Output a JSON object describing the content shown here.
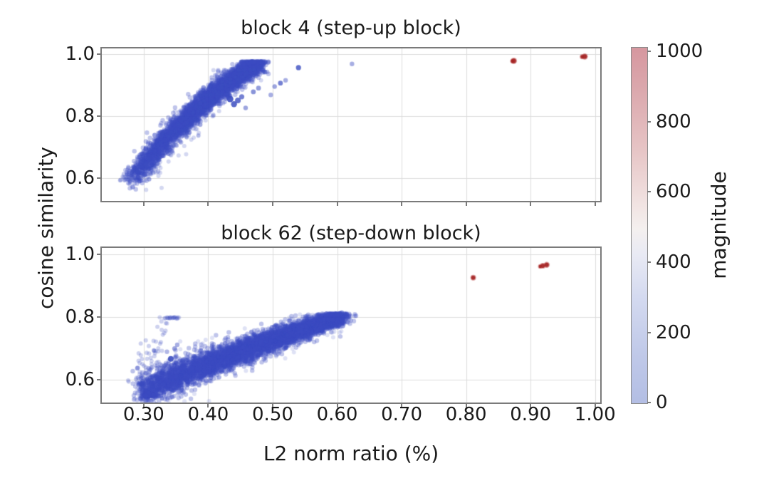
{
  "figure": {
    "xlabel": "L2 norm ratio (%)",
    "ylabel": "cosine similarity",
    "background": "#ffffff",
    "grid_color": "#dcdcdc",
    "frame_color": "#7a7a7a",
    "colorbar": {
      "label": "magnitude",
      "tick_labels": [
        "1000",
        "800",
        "600",
        "400",
        "200",
        "0"
      ],
      "tick_values": [
        1000,
        800,
        600,
        400,
        200,
        0
      ],
      "vmin": 0,
      "vmax": 1000,
      "colormap": "coolwarm (muted / translucent)",
      "gradient_stops": [
        [
          0,
          "#d6979f"
        ],
        [
          12,
          "#dba8ad"
        ],
        [
          28,
          "#e6c3c4"
        ],
        [
          44,
          "#f1e3e2"
        ],
        [
          51,
          "#f4f0ef"
        ],
        [
          58,
          "#e9eaf4"
        ],
        [
          70,
          "#d4daf0"
        ],
        [
          85,
          "#c1cae9"
        ],
        [
          100,
          "#b3bee4"
        ]
      ]
    }
  },
  "chart_data": [
    {
      "type": "scatter",
      "title": "block 4 (step-up block)",
      "xlim": [
        0.235,
        1.008
      ],
      "ylim": [
        0.526,
        1.018
      ],
      "x_tick_values": [
        0.3,
        0.4,
        0.5,
        0.6,
        0.7,
        0.8,
        0.9,
        1.0
      ],
      "x_tick_labels": [],
      "y_tick_values": [
        1.0,
        0.8,
        0.6
      ],
      "y_tick_labels": [
        "1.0",
        "0.8",
        "0.6"
      ],
      "grid": true,
      "point_color_low_magnitude": "#3b4cc0",
      "point_color_high_magnitude": "#b40426",
      "seed": 42,
      "clusters": [
        {
          "kind": "band",
          "n": 3600,
          "t_exp": 0.78,
          "x0": 0.283,
          "x_span": 0.197,
          "x_sigma": 0.0065,
          "y_poly": [
            0.598,
            0.525,
            -0.152
          ],
          "y_sigma0": 0.02,
          "y_sigma1": 0.015,
          "y_max": 0.976,
          "r": 3.2,
          "alpha": 0.32
        },
        {
          "kind": "band",
          "n": 260,
          "t_exp": 1.0,
          "x0": 0.3,
          "x_span": 0.17,
          "x_sigma": 0.009,
          "y_poly": [
            0.615,
            0.5,
            -0.13
          ],
          "y_offset": -0.018,
          "y_sigma0": 0.03,
          "y_sigma1": 0.02,
          "y_max": 0.95,
          "r": 3.0,
          "alpha": 0.22
        },
        {
          "kind": "band",
          "n": 70,
          "t_exp": 1.0,
          "x0": 0.263,
          "x_span": 0.05,
          "x_sigma": 0.004,
          "y_poly": [
            0.588,
            0.075,
            0
          ],
          "y_sigma0": 0.013,
          "y_sigma1": 0.013,
          "y_max": 0.99,
          "r": 3.0,
          "alpha": 0.3
        }
      ],
      "outliers_blue": [
        [
          0.623,
          0.968,
          3.2,
          0.45
        ],
        [
          0.54,
          0.956,
          3.6,
          0.8
        ],
        [
          0.512,
          0.906,
          3.4,
          0.7
        ],
        [
          0.52,
          0.915,
          3.2,
          0.45
        ],
        [
          0.503,
          0.895,
          3.2,
          0.5
        ],
        [
          0.497,
          0.868,
          3.2,
          0.45
        ],
        [
          0.434,
          0.855,
          4.6,
          0.9
        ],
        [
          0.44,
          0.838,
          4.2,
          0.85
        ],
        [
          0.446,
          0.85,
          4.0,
          0.8
        ],
        [
          0.452,
          0.862,
          3.6,
          0.7
        ],
        [
          0.47,
          0.878,
          3.4,
          0.6
        ],
        [
          0.458,
          0.826,
          3.2,
          0.5
        ],
        [
          0.478,
          0.89,
          3.4,
          0.55
        ],
        [
          0.488,
          0.942,
          3.4,
          0.6
        ]
      ],
      "points_red": [
        [
          0.874,
          0.978,
          4.4
        ],
        [
          0.872,
          0.977,
          3.4
        ],
        [
          0.984,
          0.992,
          4.4
        ],
        [
          0.98,
          0.991,
          3.4
        ]
      ]
    },
    {
      "type": "scatter",
      "title": "block 62 (step-down block)",
      "xlim": [
        0.235,
        1.008
      ],
      "ylim": [
        0.528,
        1.021
      ],
      "x_tick_values": [
        0.3,
        0.4,
        0.5,
        0.6,
        0.7,
        0.8,
        0.9,
        1.0
      ],
      "x_tick_labels": [
        "0.30",
        "0.40",
        "0.50",
        "0.60",
        "0.70",
        "0.80",
        "0.90",
        "1.00"
      ],
      "y_tick_values": [
        1.0,
        0.8,
        0.6
      ],
      "y_tick_labels": [
        "1.0",
        "0.8",
        "0.6"
      ],
      "grid": true,
      "point_color_low_magnitude": "#3b4cc0",
      "point_color_high_magnitude": "#b40426",
      "seed": 7,
      "clusters": [
        {
          "kind": "band",
          "n": 5200,
          "t_exp": 0.85,
          "x0": 0.298,
          "x_span": 0.31,
          "x_sigma": 0.008,
          "y_poly": [
            0.565,
            0.272,
            -0.036
          ],
          "y_sigma0": 0.027,
          "y_sigma1": 0.012,
          "y_max": 0.812,
          "r": 3.2,
          "alpha": 0.32
        },
        {
          "kind": "band",
          "n": 320,
          "t_exp": 0.9,
          "x0": 0.298,
          "x_span": 0.31,
          "x_sigma": 0.01,
          "y_poly": [
            0.565,
            0.272,
            -0.036
          ],
          "y_sigma0": 0.042,
          "y_sigma1": 0.02,
          "y_max": 0.81,
          "r": 3.0,
          "alpha": 0.16
        },
        {
          "kind": "blob",
          "n": 130,
          "cx": 0.308,
          "cy": 0.553,
          "sx": 0.0045,
          "sy": 0.0045,
          "r": 3.2,
          "alpha": 0.4
        },
        {
          "kind": "band",
          "n": 90,
          "t_exp": 1.0,
          "x0": 0.287,
          "x_span": 0.06,
          "x_sigma": 0.006,
          "y_poly": [
            0.558,
            0.28,
            0
          ],
          "y_sigma0": 0.02,
          "y_sigma1": 0.02,
          "y_max": 0.8,
          "r": 3.0,
          "alpha": 0.25
        }
      ],
      "outliers_blue": [
        [
          0.342,
          0.667,
          4.0,
          0.9
        ],
        [
          0.348,
          0.7,
          3.4,
          0.5
        ],
        [
          0.352,
          0.712,
          3.2,
          0.45
        ],
        [
          0.336,
          0.69,
          3.2,
          0.4
        ],
        [
          0.607,
          0.814,
          3.4,
          0.6
        ],
        [
          0.6,
          0.808,
          3.2,
          0.5
        ],
        [
          0.29,
          0.637,
          3.2,
          0.4
        ],
        [
          0.283,
          0.628,
          3.2,
          0.35
        ],
        [
          0.296,
          0.605,
          3.2,
          0.4
        ],
        [
          0.33,
          0.586,
          3.2,
          0.45
        ],
        [
          0.345,
          0.59,
          3.2,
          0.4
        ],
        [
          0.365,
          0.607,
          3.2,
          0.4
        ]
      ],
      "points_red": [
        [
          0.811,
          0.926,
          4.0
        ],
        [
          0.919,
          0.964,
          4.0
        ],
        [
          0.925,
          0.967,
          4.2
        ],
        [
          0.915,
          0.962,
          3.2
        ]
      ]
    }
  ]
}
